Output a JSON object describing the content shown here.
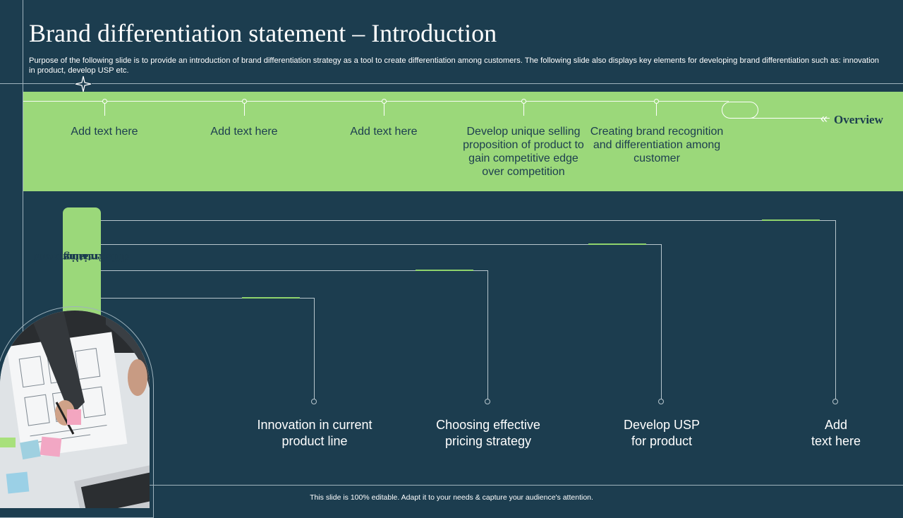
{
  "title": "Brand differentiation statement – Introduction",
  "subtitle": "Purpose of the following slide is to provide an introduction of brand differentiation strategy as a tool to create differentiation among customers. The following slide also displays key elements for developing brand differentiation such as: innovation in product, develop USP etc.",
  "overview": {
    "label": "Overview",
    "items": [
      "Add text here",
      "Add text here",
      "Add text here",
      "Develop unique selling proposition of product to gain competitive edge over competition",
      "Creating brand recognition and differentiation among customer"
    ]
  },
  "side_tab": {
    "label_line1": "Creating brand",
    "label_line2": "differentiation"
  },
  "steps": [
    {
      "line1": "Innovation in current",
      "line2": "product line"
    },
    {
      "line1": "Choosing effective",
      "line2": "pricing strategy"
    },
    {
      "line1": "Develop USP",
      "line2": "for product"
    },
    {
      "line1": "Add",
      "line2": "text here"
    }
  ],
  "footer": "This slide is 100% editable.  Adapt it to your needs & capture your audience's attention.",
  "colors": {
    "background": "#1c3d4f",
    "accent_green": "#9bd87a",
    "text_dark": "#1c3d4f"
  },
  "icons": {
    "divider": "four-point-star-icon",
    "overview_prefix": "double-chevron-left-icon"
  }
}
